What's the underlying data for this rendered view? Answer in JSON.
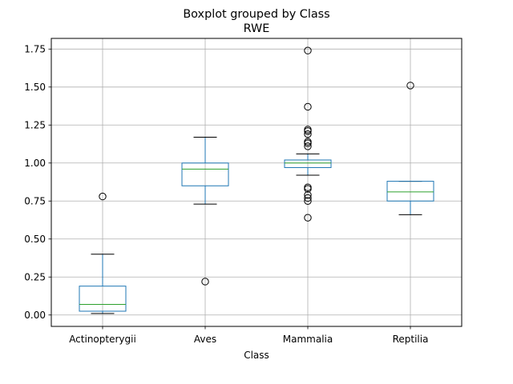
{
  "chart_data": {
    "type": "boxplot",
    "suptitle": "Boxplot grouped by Class",
    "title": "RWE",
    "xlabel": "Class",
    "ylabel": "",
    "ylim": [
      -0.075,
      1.82
    ],
    "yticks": [
      0.0,
      0.25,
      0.5,
      0.75,
      1.0,
      1.25,
      1.5,
      1.75
    ],
    "ytick_labels": [
      "0.00",
      "0.25",
      "0.50",
      "0.75",
      "1.00",
      "1.25",
      "1.50",
      "1.75"
    ],
    "grid": true,
    "categories": [
      "Actinopterygii",
      "Aves",
      "Mammalia",
      "Reptilia"
    ],
    "boxes": [
      {
        "category": "Actinopterygii",
        "whisker_low": 0.01,
        "q1": 0.025,
        "median": 0.07,
        "q3": 0.19,
        "whisker_high": 0.4,
        "outliers": [
          0.78
        ]
      },
      {
        "category": "Aves",
        "whisker_low": 0.73,
        "q1": 0.85,
        "median": 0.96,
        "q3": 1.0,
        "whisker_high": 1.17,
        "outliers": [
          0.22
        ]
      },
      {
        "category": "Mammalia",
        "whisker_low": 0.92,
        "q1": 0.97,
        "median": 1.0,
        "q3": 1.02,
        "whisker_high": 1.06,
        "outliers": [
          0.64,
          0.75,
          0.77,
          0.79,
          0.83,
          0.84,
          1.11,
          1.13,
          1.14,
          1.19,
          1.21,
          1.22,
          1.37,
          1.74
        ]
      },
      {
        "category": "Reptilia",
        "whisker_low": 0.66,
        "q1": 0.75,
        "median": 0.81,
        "q3": 0.88,
        "whisker_high": 0.88,
        "outliers": [
          1.51
        ]
      }
    ],
    "colors": {
      "box": "#1f77b4",
      "median": "#2ca02c",
      "whisker": "#000000",
      "outlier": "#000000",
      "grid": "#b0b0b0"
    }
  }
}
